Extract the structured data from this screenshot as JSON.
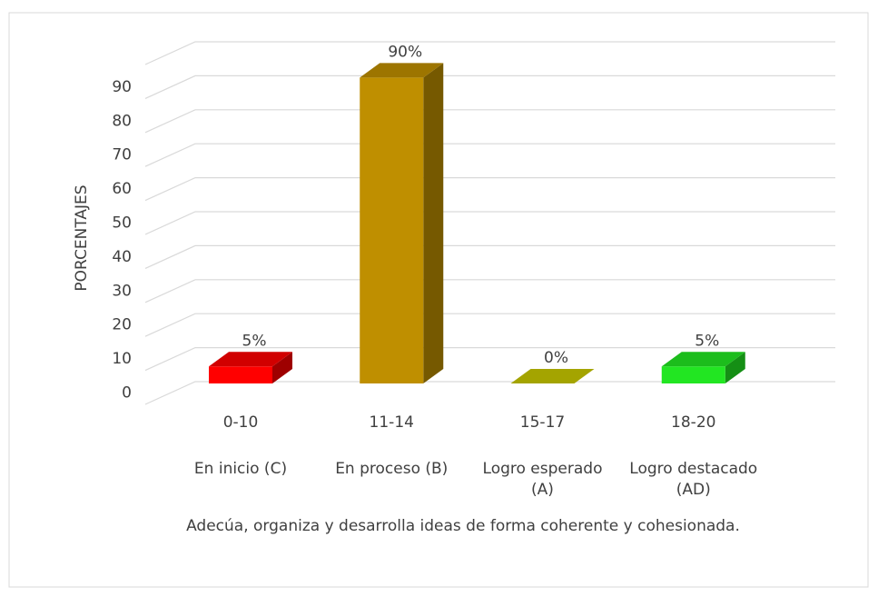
{
  "chart_data": {
    "type": "bar3d",
    "categories": [
      "0-10",
      "11-14",
      "15-17",
      "18-20"
    ],
    "category_labels": [
      "En inicio (C)",
      "En proceso (B)",
      "Logro esperado (A)",
      "Logro destacado (AD)"
    ],
    "values": [
      5,
      90,
      0,
      5
    ],
    "value_labels": [
      "5%",
      "90%",
      "0%",
      "5%"
    ],
    "colors": [
      "#ff0000",
      "#bf8f00",
      "#c8c800",
      "#22e622"
    ],
    "ylabel": "PORCENTAJES",
    "xlabel": "Adecúa, organiza y desarrolla ideas de forma coherente y cohesionada.",
    "ylim": [
      0,
      100
    ],
    "yticks": [
      0,
      10,
      20,
      30,
      40,
      50,
      60,
      70,
      80,
      90
    ],
    "grid": true
  }
}
